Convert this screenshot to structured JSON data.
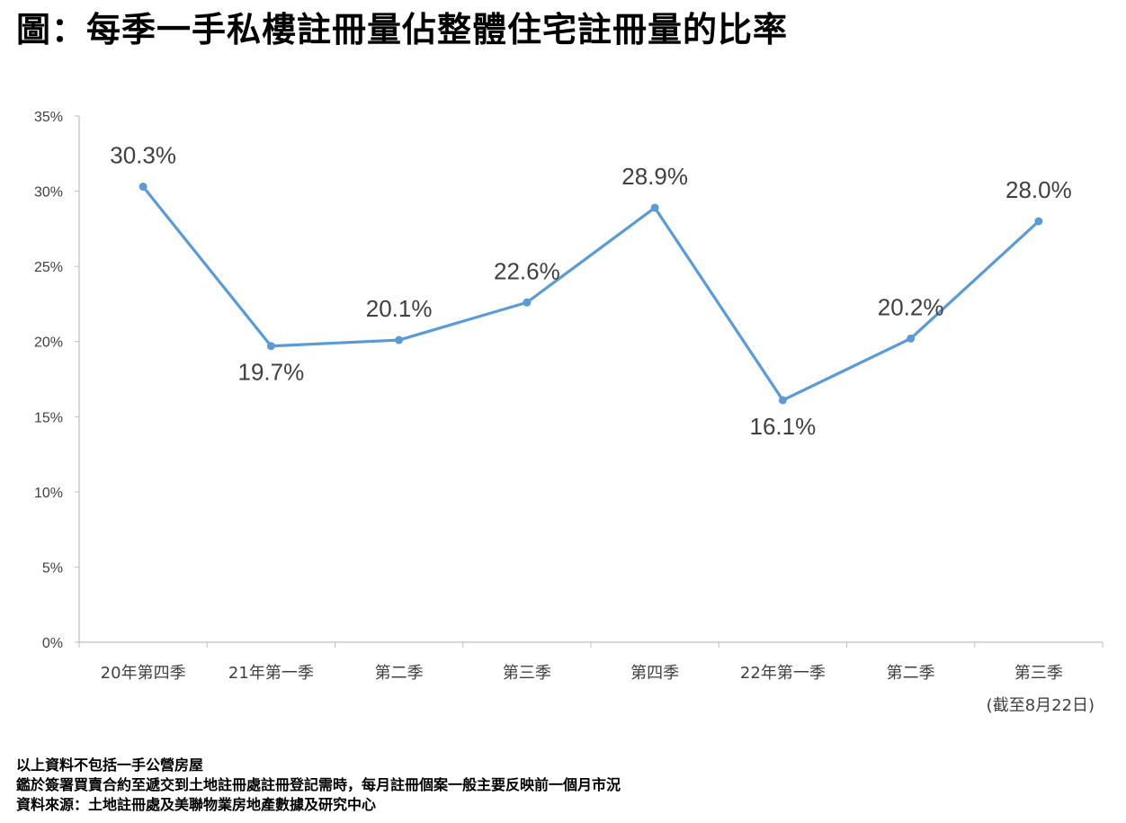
{
  "title": "圖：每季一手私樓註冊量佔整體住宅註冊量的比率",
  "chart_data": {
    "type": "line",
    "categories": [
      "20年第四季",
      "21年第一季",
      "第二季",
      "第三季",
      "第四季",
      "22年第一季",
      "第二季",
      "第三季"
    ],
    "category_subnote": "(截至8月22日)",
    "series": [
      {
        "values": [
          30.3,
          19.7,
          20.1,
          22.6,
          28.9,
          16.1,
          20.2,
          28.0
        ],
        "data_labels": [
          "30.3%",
          "19.7%",
          "20.1%",
          "22.6%",
          "28.9%",
          "16.1%",
          "20.2%",
          "28.0%"
        ],
        "color": "#5b9bd5"
      }
    ],
    "ylim": [
      0,
      35
    ],
    "yticks": [
      0,
      5,
      10,
      15,
      20,
      25,
      30,
      35
    ],
    "ytick_labels": [
      "0%",
      "5%",
      "10%",
      "15%",
      "20%",
      "25%",
      "30%",
      "35%"
    ],
    "grid": false,
    "axis_color": "#bfbfbf"
  },
  "footnotes": [
    "以上資料不包括一手公營房屋",
    "鑑於簽署買賣合約至遞交到土地註冊處註冊登記需時，每月註冊個案一般主要反映前一個月市況",
    "資料來源：土地註冊處及美聯物業房地產數據及研究中心"
  ]
}
